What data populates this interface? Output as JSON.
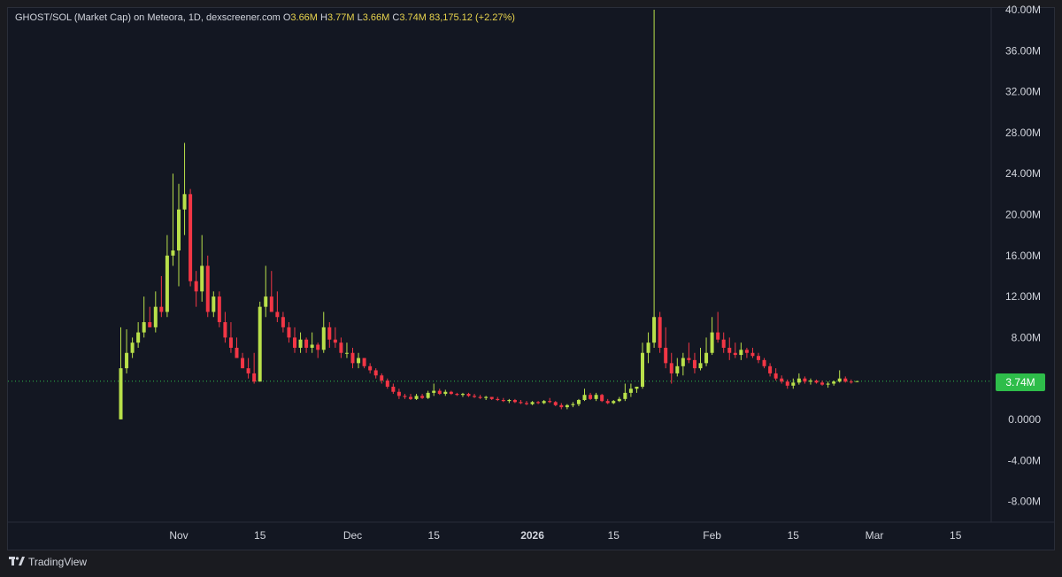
{
  "legend": {
    "title": "GHOST/SOL (Market Cap) on Meteora, 1D, dexscreener.com",
    "o_label": "O",
    "o_value": "3.66M",
    "h_label": "H",
    "h_value": "3.77M",
    "l_label": "L",
    "l_value": "3.66M",
    "c_label": "C",
    "c_value": "3.74M",
    "change": "83,175.12 (+2.27%)"
  },
  "last_price_label": "3.74M",
  "brand": "TradingView",
  "colors": {
    "up": "#b9e04a",
    "down": "#f23645",
    "background": "#131722",
    "price_line": "#2ebd4a"
  },
  "chart_data": {
    "type": "candlestick",
    "y_ticks": [
      "40.00M",
      "36.00M",
      "32.00M",
      "28.00M",
      "24.00M",
      "20.00M",
      "16.00M",
      "12.00M",
      "8.00M",
      "0.0000",
      "-4.00M",
      "-8.00M"
    ],
    "y_tick_values": [
      40,
      36,
      32,
      28,
      24,
      20,
      16,
      12,
      8,
      0,
      -4,
      -8
    ],
    "x_ticks": [
      {
        "label": "Nov",
        "day": 0,
        "bold": false
      },
      {
        "label": "15",
        "day": 14,
        "bold": false
      },
      {
        "label": "Dec",
        "day": 30,
        "bold": false
      },
      {
        "label": "15",
        "day": 44,
        "bold": false
      },
      {
        "label": "2026",
        "day": 61,
        "bold": true
      },
      {
        "label": "15",
        "day": 75,
        "bold": false
      },
      {
        "label": "Feb",
        "day": 92,
        "bold": false
      },
      {
        "label": "15",
        "day": 106,
        "bold": false
      },
      {
        "label": "Mar",
        "day": 120,
        "bold": false
      },
      {
        "label": "15",
        "day": 134,
        "bold": false
      }
    ],
    "last_value": 3.74,
    "unit": "M",
    "candles": [
      [
        -10,
        0.01,
        9.0,
        0.01,
        5.0
      ],
      [
        -9,
        5.0,
        8.8,
        4.5,
        6.5
      ],
      [
        -8,
        6.5,
        8.0,
        6.0,
        7.5
      ],
      [
        -7,
        7.5,
        9.5,
        7.0,
        8.5
      ],
      [
        -6,
        8.5,
        12.0,
        8.0,
        9.5
      ],
      [
        -5,
        9.5,
        11.0,
        9.0,
        9.0
      ],
      [
        -4,
        9.0,
        12.5,
        8.5,
        11.0
      ],
      [
        -3,
        11.0,
        14.0,
        10.0,
        10.5
      ],
      [
        -2,
        10.5,
        18.0,
        10.0,
        16.0
      ],
      [
        -1,
        16.0,
        24.0,
        15.0,
        16.5
      ],
      [
        0,
        16.5,
        23.0,
        13.0,
        20.5
      ],
      [
        1,
        20.5,
        27.0,
        18.0,
        22.0
      ],
      [
        2,
        22.0,
        22.5,
        13.0,
        13.5
      ],
      [
        3,
        13.5,
        14.5,
        11.0,
        12.5
      ],
      [
        4,
        12.5,
        18.0,
        11.5,
        15.0
      ],
      [
        5,
        15.0,
        16.0,
        10.0,
        10.5
      ],
      [
        6,
        10.5,
        12.5,
        10.0,
        12.0
      ],
      [
        7,
        12.0,
        12.5,
        9.0,
        9.5
      ],
      [
        8,
        9.5,
        10.5,
        7.5,
        8.0
      ],
      [
        9,
        8.0,
        9.5,
        6.5,
        7.0
      ],
      [
        10,
        7.0,
        8.0,
        6.0,
        6.0
      ],
      [
        11,
        6.0,
        6.5,
        5.0,
        5.0
      ],
      [
        12,
        5.0,
        6.0,
        4.0,
        4.5
      ],
      [
        13,
        4.5,
        6.5,
        3.5,
        3.7
      ],
      [
        14,
        3.7,
        11.5,
        3.7,
        11.0
      ],
      [
        15,
        11.0,
        15.0,
        10.0,
        12.0
      ],
      [
        16,
        12.0,
        14.5,
        10.5,
        10.5
      ],
      [
        17,
        10.5,
        12.5,
        9.5,
        10.0
      ],
      [
        18,
        10.0,
        10.5,
        8.5,
        9.0
      ],
      [
        19,
        9.0,
        9.5,
        7.5,
        8.0
      ],
      [
        20,
        8.0,
        9.0,
        6.5,
        7.0
      ],
      [
        21,
        7.0,
        8.5,
        6.5,
        7.8
      ],
      [
        22,
        7.8,
        8.0,
        6.5,
        7.0
      ],
      [
        23,
        7.0,
        8.5,
        6.5,
        7.3
      ],
      [
        24,
        7.3,
        7.5,
        6.0,
        6.8
      ],
      [
        25,
        6.8,
        10.5,
        6.5,
        9.0
      ],
      [
        26,
        9.0,
        9.5,
        7.0,
        7.8
      ],
      [
        27,
        7.8,
        9.0,
        7.0,
        7.5
      ],
      [
        28,
        7.5,
        8.0,
        6.0,
        6.5
      ],
      [
        29,
        6.5,
        7.5,
        6.0,
        6.5
      ],
      [
        30,
        6.5,
        7.0,
        5.0,
        5.5
      ],
      [
        31,
        5.5,
        6.5,
        5.0,
        6.0
      ],
      [
        32,
        6.0,
        6.0,
        5.0,
        5.2
      ],
      [
        33,
        5.2,
        5.5,
        4.5,
        4.8
      ],
      [
        34,
        4.8,
        5.0,
        4.0,
        4.3
      ],
      [
        35,
        4.3,
        4.5,
        3.5,
        3.8
      ],
      [
        36,
        3.8,
        4.0,
        3.0,
        3.2
      ],
      [
        37,
        3.2,
        3.5,
        2.5,
        2.7
      ],
      [
        38,
        2.7,
        3.0,
        2.0,
        2.3
      ],
      [
        39,
        2.3,
        2.5,
        2.0,
        2.2
      ],
      [
        40,
        2.2,
        2.5,
        1.9,
        2.0
      ],
      [
        41,
        2.0,
        2.5,
        1.9,
        2.3
      ],
      [
        42,
        2.3,
        2.5,
        2.0,
        2.1
      ],
      [
        43,
        2.1,
        2.8,
        2.0,
        2.6
      ],
      [
        44,
        2.6,
        3.5,
        2.3,
        2.8
      ],
      [
        45,
        2.8,
        3.0,
        2.4,
        2.5
      ],
      [
        46,
        2.5,
        2.9,
        2.3,
        2.7
      ],
      [
        47,
        2.7,
        2.8,
        2.4,
        2.5
      ],
      [
        48,
        2.5,
        2.6,
        2.3,
        2.4
      ],
      [
        49,
        2.4,
        2.6,
        2.2,
        2.5
      ],
      [
        50,
        2.5,
        2.6,
        2.2,
        2.3
      ],
      [
        51,
        2.3,
        2.5,
        2.1,
        2.2
      ],
      [
        52,
        2.2,
        2.4,
        2.0,
        2.1
      ],
      [
        53,
        2.1,
        2.3,
        1.9,
        2.2
      ],
      [
        54,
        2.2,
        2.2,
        1.9,
        2.0
      ],
      [
        55,
        2.0,
        2.2,
        1.8,
        1.9
      ],
      [
        56,
        1.9,
        2.1,
        1.7,
        1.8
      ],
      [
        57,
        1.8,
        2.0,
        1.6,
        1.9
      ],
      [
        58,
        1.9,
        2.0,
        1.6,
        1.7
      ],
      [
        59,
        1.7,
        1.9,
        1.5,
        1.6
      ],
      [
        60,
        1.6,
        1.8,
        1.4,
        1.5
      ],
      [
        61,
        1.5,
        1.8,
        1.4,
        1.7
      ],
      [
        62,
        1.7,
        1.8,
        1.5,
        1.6
      ],
      [
        63,
        1.6,
        1.9,
        1.5,
        1.8
      ],
      [
        64,
        1.8,
        2.1,
        1.6,
        1.7
      ],
      [
        65,
        1.7,
        1.8,
        1.3,
        1.4
      ],
      [
        66,
        1.4,
        1.6,
        1.0,
        1.2
      ],
      [
        67,
        1.2,
        1.5,
        1.0,
        1.4
      ],
      [
        68,
        1.4,
        1.7,
        1.2,
        1.5
      ],
      [
        69,
        1.5,
        2.0,
        1.3,
        1.9
      ],
      [
        70,
        1.9,
        3.0,
        1.8,
        2.4
      ],
      [
        71,
        2.4,
        2.6,
        1.9,
        2.0
      ],
      [
        72,
        2.0,
        2.6,
        1.8,
        2.4
      ],
      [
        73,
        2.4,
        2.5,
        1.7,
        1.8
      ],
      [
        74,
        1.8,
        2.0,
        1.5,
        1.6
      ],
      [
        75,
        1.6,
        1.9,
        1.5,
        1.8
      ],
      [
        76,
        1.8,
        2.2,
        1.7,
        2.0
      ],
      [
        77,
        2.0,
        3.5,
        1.8,
        2.6
      ],
      [
        78,
        2.6,
        3.5,
        2.2,
        3.0
      ],
      [
        79,
        3.0,
        3.2,
        2.6,
        3.2
      ],
      [
        80,
        3.2,
        7.5,
        3.0,
        6.5
      ],
      [
        81,
        6.5,
        8.5,
        5.5,
        7.5
      ],
      [
        82,
        7.5,
        40.0,
        7.0,
        10.0
      ],
      [
        83,
        10.0,
        10.5,
        6.5,
        7.0
      ],
      [
        84,
        7.0,
        9.0,
        5.0,
        5.5
      ],
      [
        85,
        5.5,
        6.5,
        3.5,
        4.5
      ],
      [
        86,
        4.5,
        6.0,
        4.2,
        5.2
      ],
      [
        87,
        5.2,
        6.5,
        4.3,
        6.0
      ],
      [
        88,
        6.0,
        7.5,
        5.5,
        5.8
      ],
      [
        89,
        5.8,
        6.5,
        4.5,
        5.0
      ],
      [
        90,
        5.0,
        7.0,
        4.8,
        5.5
      ],
      [
        91,
        5.5,
        8.0,
        5.2,
        6.5
      ],
      [
        92,
        6.5,
        10.0,
        6.3,
        8.5
      ],
      [
        93,
        8.5,
        10.5,
        7.5,
        7.8
      ],
      [
        94,
        7.8,
        8.5,
        6.5,
        7.0
      ],
      [
        95,
        7.0,
        8.0,
        5.8,
        6.5
      ],
      [
        96,
        6.5,
        7.5,
        6.0,
        6.3
      ],
      [
        97,
        6.3,
        7.5,
        5.8,
        6.8
      ],
      [
        98,
        6.8,
        7.0,
        6.0,
        6.5
      ],
      [
        99,
        6.5,
        7.0,
        6.0,
        6.2
      ],
      [
        100,
        6.2,
        6.5,
        5.5,
        5.8
      ],
      [
        101,
        5.8,
        6.0,
        5.0,
        5.2
      ],
      [
        102,
        5.2,
        5.5,
        4.2,
        4.5
      ],
      [
        103,
        4.5,
        5.0,
        3.8,
        4.0
      ],
      [
        104,
        4.0,
        4.3,
        3.5,
        3.7
      ],
      [
        105,
        3.7,
        3.9,
        3.0,
        3.3
      ],
      [
        106,
        3.3,
        4.0,
        3.0,
        3.6
      ],
      [
        107,
        3.6,
        4.5,
        3.4,
        4.0
      ],
      [
        108,
        4.0,
        4.2,
        3.5,
        3.7
      ],
      [
        109,
        3.7,
        4.0,
        3.4,
        3.8
      ],
      [
        110,
        3.8,
        3.9,
        3.5,
        3.6
      ],
      [
        111,
        3.6,
        3.8,
        3.3,
        3.4
      ],
      [
        112,
        3.4,
        3.7,
        3.1,
        3.5
      ],
      [
        113,
        3.5,
        3.8,
        3.3,
        3.7
      ],
      [
        114,
        3.7,
        4.8,
        3.6,
        4.0
      ],
      [
        115,
        4.0,
        4.2,
        3.6,
        3.7
      ],
      [
        116,
        3.7,
        3.9,
        3.5,
        3.66
      ],
      [
        117,
        3.66,
        3.77,
        3.66,
        3.74
      ]
    ]
  }
}
